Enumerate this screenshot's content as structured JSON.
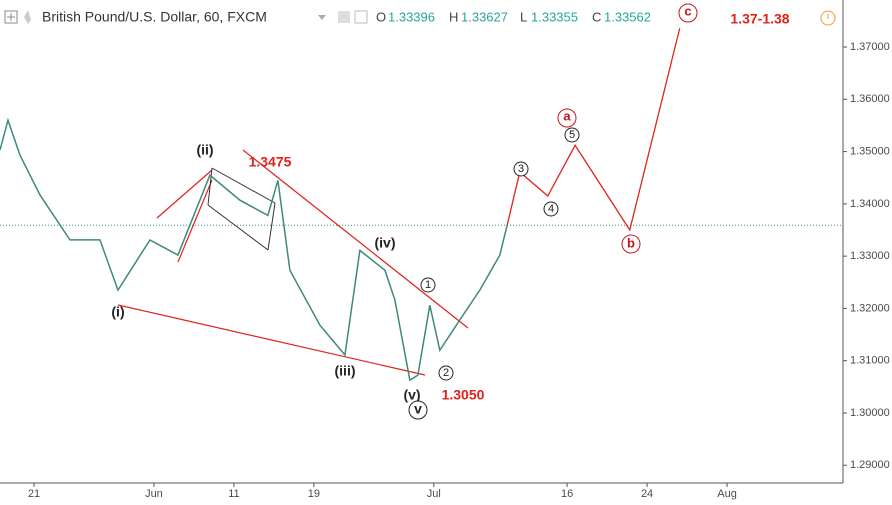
{
  "chart_data": {
    "type": "line",
    "title": "British Pound/U.S. Dollar, 60, FXCM",
    "ohlc": [
      {
        "label": "O",
        "value": 1.33396
      },
      {
        "label": "H",
        "value": 1.33627
      },
      {
        "label": "L",
        "value": 1.33355
      },
      {
        "label": "C",
        "value": 1.33562
      }
    ],
    "series": [
      {
        "name": "GBPUSD",
        "color": "#3d8a7a",
        "x": [
          -2.55,
          -1.95,
          -1.05,
          0.45,
          2.7,
          4.95,
          6.3,
          8.7,
          10.8,
          13.2,
          15.45,
          17.55,
          18.3,
          19.2,
          21.45,
          23.33,
          24.45,
          26.33,
          27.08,
          28.2,
          28.8,
          29.7,
          30.45,
          31.95,
          33.45,
          34.95,
          35.5
        ],
        "values": [
          1.3503,
          1.356,
          1.3493,
          1.3417,
          1.3331,
          1.3331,
          1.3235,
          1.3331,
          1.3302,
          1.3455,
          1.3407,
          1.3378,
          1.3445,
          1.3273,
          1.3168,
          1.3111,
          1.3311,
          1.3273,
          1.3216,
          1.3063,
          1.3072,
          1.3206,
          1.312,
          1.3178,
          1.3235,
          1.3302,
          1.3359
        ]
      },
      {
        "name": "Projection",
        "color": "#e0221b",
        "x": [
          35.5,
          36.45,
          38.55,
          40.6,
          44.7,
          48.45
        ],
        "values": [
          1.3359,
          1.3461,
          1.3415,
          1.3512,
          1.335,
          1.3736
        ]
      }
    ],
    "annotations": [
      "1.3475",
      "1.3050",
      "1.37-1.38",
      "(i)",
      "(ii)",
      "(iii)",
      "(iv)",
      "(v)",
      "v",
      "1",
      "2",
      "3",
      "4",
      "5",
      "a",
      "b",
      "c"
    ],
    "xlim": [
      -2.55,
      60.7
    ],
    "xticks": [
      {
        "value": 0,
        "label": "21"
      },
      {
        "value": 9,
        "label": "Jun"
      },
      {
        "value": 15,
        "label": "11"
      },
      {
        "value": 21,
        "label": "19"
      },
      {
        "value": 30,
        "label": "Jul"
      },
      {
        "value": 40,
        "label": "16"
      },
      {
        "value": 46,
        "label": "24"
      },
      {
        "value": 52,
        "label": "Aug"
      }
    ],
    "ylim": [
      1.2866,
      1.379
    ],
    "yticks": [
      {
        "value": 1.29,
        "label": "1.29000"
      },
      {
        "value": 1.3,
        "label": "1.30000"
      },
      {
        "value": 1.31,
        "label": "1.31000"
      },
      {
        "value": 1.32,
        "label": "1.32000"
      },
      {
        "value": 1.33,
        "label": "1.33000"
      },
      {
        "value": 1.34,
        "label": "1.34000"
      },
      {
        "value": 1.35,
        "label": "1.35000"
      },
      {
        "value": 1.36,
        "label": "1.36000"
      },
      {
        "value": 1.37,
        "label": "1.37000"
      }
    ]
  }
}
